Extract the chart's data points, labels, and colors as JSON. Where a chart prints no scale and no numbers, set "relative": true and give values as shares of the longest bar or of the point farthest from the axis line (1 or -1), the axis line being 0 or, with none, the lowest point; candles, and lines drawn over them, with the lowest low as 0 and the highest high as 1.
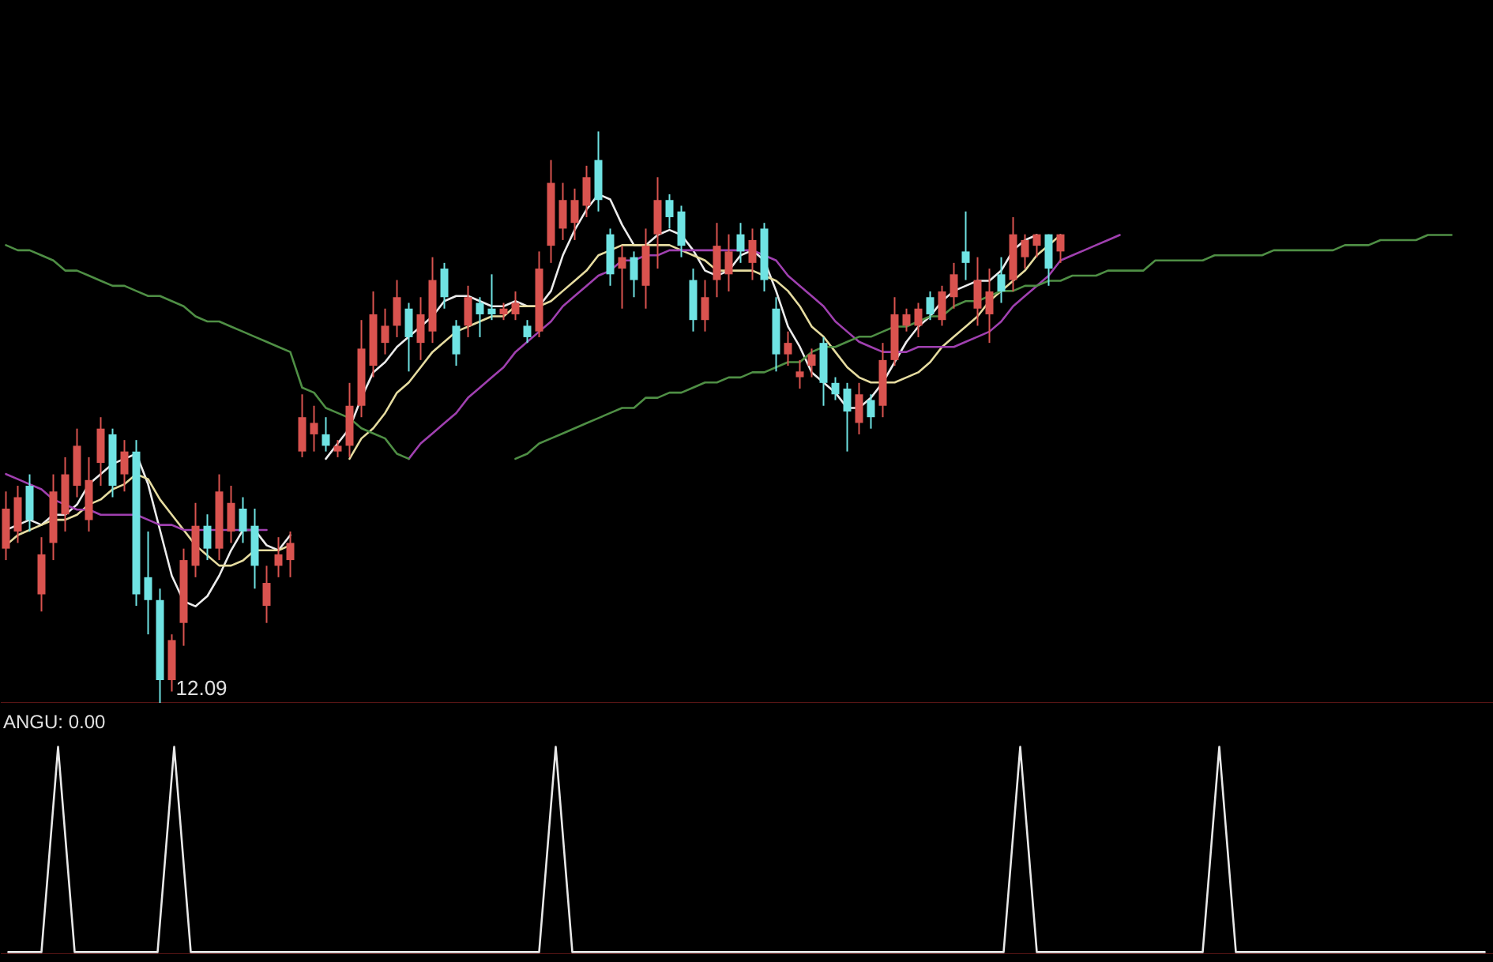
{
  "chart_data": [
    {
      "type": "candlestick",
      "relative": true,
      "categories": [
        null,
        null,
        null,
        null,
        null,
        null,
        null,
        null,
        null,
        null,
        null,
        null,
        null,
        null,
        null,
        null,
        null,
        null,
        null,
        null,
        null,
        null,
        null,
        null,
        null,
        null,
        null,
        null,
        null,
        null,
        null,
        null,
        null,
        null,
        null,
        null,
        null,
        null,
        null,
        null,
        null,
        null,
        null,
        null,
        null,
        null,
        null,
        null,
        null,
        null,
        null,
        null,
        null,
        null,
        null,
        null,
        null,
        null,
        null,
        null,
        null,
        null,
        null,
        null,
        null,
        null,
        null,
        null,
        null,
        null,
        null,
        null,
        null,
        null,
        null,
        null,
        null,
        null,
        null,
        null,
        null,
        null,
        null,
        null,
        null,
        null,
        null,
        null,
        null,
        null
      ],
      "ohlc": [
        [
          0.27,
          0.37,
          0.25,
          0.34
        ],
        [
          0.3,
          0.38,
          0.28,
          0.36
        ],
        [
          0.38,
          0.4,
          0.3,
          0.32
        ],
        [
          0.19,
          0.29,
          0.16,
          0.26
        ],
        [
          0.28,
          0.4,
          0.25,
          0.37
        ],
        [
          0.33,
          0.43,
          0.3,
          0.4
        ],
        [
          0.38,
          0.48,
          0.36,
          0.45
        ],
        [
          0.32,
          0.43,
          0.3,
          0.39
        ],
        [
          0.42,
          0.5,
          0.38,
          0.48
        ],
        [
          0.47,
          0.48,
          0.36,
          0.38
        ],
        [
          0.4,
          0.46,
          0.37,
          0.44
        ],
        [
          0.44,
          0.46,
          0.17,
          0.19
        ],
        [
          0.22,
          0.3,
          0.12,
          0.18
        ],
        [
          0.18,
          0.2,
          0,
          0.04
        ],
        [
          0.04,
          0.12,
          0.02,
          0.11
        ],
        [
          0.14,
          0.27,
          0.1,
          0.25
        ],
        [
          0.24,
          0.35,
          0.22,
          0.31
        ],
        [
          0.31,
          0.33,
          0.25,
          0.27
        ],
        [
          0.27,
          0.4,
          0.25,
          0.37
        ],
        [
          0.3,
          0.38,
          0.28,
          0.35
        ],
        [
          0.34,
          0.36,
          0.28,
          0.3
        ],
        [
          0.31,
          0.34,
          0.2,
          0.24
        ],
        [
          0.17,
          0.24,
          0.14,
          0.21
        ],
        [
          0.24,
          0.29,
          0.22,
          0.26
        ],
        [
          0.25,
          0.3,
          0.22,
          0.28
        ],
        [
          0.44,
          0.54,
          0.43,
          0.5
        ],
        [
          0.47,
          0.52,
          0.44,
          0.49
        ],
        [
          0.47,
          0.5,
          0.44,
          0.45
        ],
        [
          0.44,
          0.46,
          0.43,
          0.45
        ],
        [
          0.45,
          0.56,
          0.43,
          0.52
        ],
        [
          0.52,
          0.67,
          0.5,
          0.62
        ],
        [
          0.59,
          0.72,
          0.57,
          0.68
        ],
        [
          0.63,
          0.69,
          0.61,
          0.66
        ],
        [
          0.66,
          0.74,
          0.64,
          0.71
        ],
        [
          0.69,
          0.7,
          0.58,
          0.64
        ],
        [
          0.63,
          0.71,
          0.6,
          0.68
        ],
        [
          0.65,
          0.78,
          0.63,
          0.74
        ],
        [
          0.76,
          0.77,
          0.69,
          0.71
        ],
        [
          0.66,
          0.67,
          0.59,
          0.61
        ],
        [
          0.66,
          0.73,
          0.64,
          0.71
        ],
        [
          0.7,
          0.71,
          0.64,
          0.68
        ],
        [
          0.69,
          0.75,
          0.67,
          0.68
        ],
        [
          0.68,
          0.7,
          0.67,
          0.69
        ],
        [
          0.68,
          0.72,
          0.67,
          0.7
        ],
        [
          0.66,
          0.67,
          0.63,
          0.64
        ],
        [
          0.65,
          0.79,
          0.64,
          0.76
        ],
        [
          0.8,
          0.95,
          0.77,
          0.91
        ],
        [
          0.83,
          0.91,
          0.81,
          0.88
        ],
        [
          0.84,
          0.9,
          0.81,
          0.88
        ],
        [
          0.87,
          0.94,
          0.85,
          0.92
        ],
        [
          0.95,
          1,
          0.86,
          0.88
        ],
        [
          0.82,
          0.83,
          0.73,
          0.75
        ],
        [
          0.76,
          0.8,
          0.69,
          0.78
        ],
        [
          0.78,
          0.79,
          0.71,
          0.74
        ],
        [
          0.73,
          0.83,
          0.69,
          0.8
        ],
        [
          0.82,
          0.92,
          0.76,
          0.88
        ],
        [
          0.88,
          0.89,
          0.83,
          0.85
        ],
        [
          0.86,
          0.87,
          0.78,
          0.8
        ],
        [
          0.74,
          0.76,
          0.65,
          0.67
        ],
        [
          0.67,
          0.74,
          0.65,
          0.71
        ],
        [
          0.74,
          0.84,
          0.71,
          0.8
        ],
        [
          0.75,
          0.82,
          0.72,
          0.79
        ],
        [
          0.82,
          0.84,
          0.77,
          0.79
        ],
        [
          0.77,
          0.83,
          0.74,
          0.81
        ],
        [
          0.83,
          0.84,
          0.72,
          0.74
        ],
        [
          0.69,
          0.71,
          0.58,
          0.61
        ],
        [
          0.61,
          0.65,
          0.59,
          0.63
        ],
        [
          0.57,
          0.6,
          0.55,
          0.58
        ],
        [
          0.59,
          0.62,
          0.57,
          0.61
        ],
        [
          0.63,
          0.64,
          0.52,
          0.56
        ],
        [
          0.56,
          0.57,
          0.53,
          0.54
        ],
        [
          0.55,
          0.56,
          0.44,
          0.51
        ],
        [
          0.49,
          0.56,
          0.47,
          0.54
        ],
        [
          0.53,
          0.54,
          0.48,
          0.5
        ],
        [
          0.52,
          0.63,
          0.5,
          0.6
        ],
        [
          0.6,
          0.71,
          0.59,
          0.68
        ],
        [
          0.66,
          0.69,
          0.65,
          0.68
        ],
        [
          0.66,
          0.7,
          0.64,
          0.69
        ],
        [
          0.71,
          0.72,
          0.67,
          0.68
        ],
        [
          0.67,
          0.73,
          0.66,
          0.72
        ],
        [
          0.71,
          0.77,
          0.69,
          0.75
        ],
        [
          0.79,
          0.86,
          0.74,
          0.77
        ],
        [
          0.69,
          0.78,
          0.66,
          0.74
        ],
        [
          0.68,
          0.76,
          0.63,
          0.72
        ],
        [
          0.75,
          0.78,
          0.7,
          0.72
        ],
        [
          0.74,
          0.85,
          0.72,
          0.82
        ],
        [
          0.78,
          0.82,
          0.76,
          0.81
        ],
        [
          0.8,
          0.82,
          0.78,
          0.82
        ],
        [
          0.82,
          0.82,
          0.73,
          0.76
        ],
        [
          0.79,
          0.82,
          0.77,
          0.82
        ]
      ],
      "colors": [
        "#d9534f",
        "#d9534f",
        "#6fe3e3",
        "#d9534f",
        "#d9534f",
        "#d9534f",
        "#d9534f",
        "#d9534f",
        "#d9534f",
        "#6fe3e3",
        "#d9534f",
        "#6fe3e3",
        "#6fe3e3",
        "#6fe3e3",
        "#d9534f",
        "#d9534f",
        "#d9534f",
        "#6fe3e3",
        "#d9534f",
        "#d9534f",
        "#6fe3e3",
        "#6fe3e3",
        "#d9534f",
        "#d9534f",
        "#d9534f",
        "#d9534f",
        "#d9534f",
        "#6fe3e3",
        "#d9534f",
        "#d9534f",
        "#d9534f",
        "#d9534f",
        "#d9534f",
        "#d9534f",
        "#6fe3e3",
        "#d9534f",
        "#d9534f",
        "#6fe3e3",
        "#6fe3e3",
        "#d9534f",
        "#6fe3e3",
        "#6fe3e3",
        "#d9534f",
        "#d9534f",
        "#6fe3e3",
        "#d9534f",
        "#d9534f",
        "#d9534f",
        "#d9534f",
        "#d9534f",
        "#6fe3e3",
        "#6fe3e3",
        "#d9534f",
        "#6fe3e3",
        "#d9534f",
        "#d9534f",
        "#6fe3e3",
        "#6fe3e3",
        "#6fe3e3",
        "#d9534f",
        "#d9534f",
        "#d9534f",
        "#6fe3e3",
        "#d9534f",
        "#6fe3e3",
        "#6fe3e3",
        "#d9534f",
        "#d9534f",
        "#d9534f",
        "#6fe3e3",
        "#6fe3e3",
        "#6fe3e3",
        "#d9534f",
        "#6fe3e3",
        "#d9534f",
        "#d9534f",
        "#d9534f",
        "#d9534f",
        "#6fe3e3",
        "#d9534f",
        "#d9534f",
        "#6fe3e3",
        "#d9534f",
        "#d9534f",
        "#6fe3e3",
        "#d9534f",
        "#d9534f",
        "#d9534f",
        "#6fe3e3",
        "#d9534f"
      ],
      "annotations": [
        "12.09"
      ]
    },
    {
      "type": "line",
      "relative": true,
      "categories": [
        null,
        null,
        null,
        null,
        null,
        null,
        null,
        null,
        null,
        null,
        null,
        null,
        null,
        null,
        null,
        null,
        null,
        null,
        null,
        null,
        null,
        null,
        null,
        null,
        null,
        null,
        null,
        null,
        null,
        null,
        null,
        null,
        null,
        null,
        null,
        null,
        null,
        null,
        null,
        null,
        null,
        null,
        null,
        null,
        null,
        null,
        null,
        null,
        null,
        null,
        null,
        null,
        null,
        null,
        null,
        null,
        null,
        null,
        null,
        null,
        null,
        null,
        null,
        null,
        null,
        null,
        null,
        null,
        null,
        null,
        null,
        null,
        null,
        null,
        null,
        null,
        null,
        null,
        null,
        null,
        null,
        null,
        null,
        null,
        null,
        null,
        null,
        null,
        null,
        null,
        null,
        null,
        null,
        null,
        null,
        null,
        null,
        null,
        null,
        null,
        null,
        null,
        null,
        null,
        null,
        null,
        null,
        null,
        null,
        null,
        null,
        null,
        null,
        null,
        null,
        null,
        null,
        null,
        null,
        null,
        null,
        null,
        null,
        null,
        null,
        null
      ],
      "series": [
        {
          "type": "line",
          "color": "#ececec",
          "values": [
            0.34,
            0.35,
            0.36,
            0.35,
            0.37,
            0.37,
            0.39,
            0.43,
            0.45,
            0.47,
            0.48,
            0.49,
            0.43,
            0.34,
            0.25,
            0.2,
            0.19,
            0.21,
            0.25,
            0.3,
            0.34,
            0.34,
            0.31,
            0.3,
            0.33,
            null,
            null,
            null,
            null,
            null,
            null,
            null,
            null,
            null,
            null,
            null,
            null,
            null,
            null,
            null,
            null,
            null,
            null,
            null,
            null,
            null,
            null,
            null,
            null,
            null,
            null,
            null,
            null,
            null,
            null,
            null,
            null,
            null,
            null,
            null,
            null,
            null,
            null,
            null,
            null,
            null,
            null,
            null,
            null,
            null,
            null,
            null,
            null,
            null,
            null,
            null,
            null,
            null,
            null,
            null,
            null,
            null,
            null,
            null,
            null,
            null,
            null,
            null,
            null,
            null,
            null,
            null,
            null,
            null,
            null,
            null,
            null,
            null,
            null,
            null,
            null,
            null,
            null,
            null,
            null,
            null,
            null,
            null,
            null,
            null,
            null,
            null,
            null,
            null,
            null,
            null,
            null,
            null,
            null,
            null,
            null,
            null,
            null,
            null,
            null,
            null
          ]
        },
        {
          "type": "line",
          "color": "#ececec",
          "values": [
            null,
            null,
            null,
            null,
            null,
            null,
            null,
            null,
            null,
            null,
            null,
            null,
            null,
            null,
            null,
            null,
            null,
            null,
            null,
            null,
            null,
            null,
            null,
            null,
            null,
            null,
            null,
            0.48,
            0.51,
            0.54,
            0.6,
            0.65,
            0.67,
            0.7,
            0.72,
            0.74,
            0.76,
            0.79,
            0.8,
            0.8,
            0.79,
            0.78,
            0.78,
            0.79,
            0.78,
            0.78,
            0.81,
            0.88,
            0.93,
            0.97,
            1,
            0.99,
            0.94,
            0.9,
            0.9,
            0.92,
            0.93,
            0.92,
            0.89,
            0.85,
            0.84,
            0.85,
            0.88,
            0.89,
            0.87,
            0.81,
            0.74,
            0.7,
            0.65,
            0.63,
            0.61,
            0.58,
            0.58,
            0.6,
            0.63,
            0.67,
            0.71,
            0.74,
            0.76,
            0.79,
            0.81,
            0.82,
            0.83,
            0.83,
            0.85,
            0.89,
            0.91,
            0.92,
            null,
            null,
            null,
            null,
            null,
            null,
            null,
            null,
            null,
            null,
            null,
            null,
            null,
            null,
            null,
            null,
            null,
            null,
            null,
            null,
            null,
            null,
            null,
            null,
            null,
            null,
            null,
            null,
            null,
            null,
            null,
            null,
            null,
            null,
            null,
            null,
            null,
            null
          ]
        },
        {
          "type": "line",
          "color": "#e6dca0",
          "values": [
            0.31,
            0.33,
            0.34,
            0.35,
            0.36,
            0.36,
            0.37,
            0.39,
            0.4,
            0.42,
            0.43,
            0.45,
            0.44,
            0.4,
            0.37,
            0.34,
            0.31,
            0.29,
            0.27,
            0.27,
            0.28,
            0.3,
            0.3,
            0.3,
            0.31,
            null,
            null,
            null,
            null,
            null,
            null,
            null,
            null,
            null,
            null,
            null,
            null,
            null,
            null,
            null,
            null,
            null,
            null,
            null,
            null,
            null,
            null,
            null,
            null,
            null,
            null,
            null,
            null,
            null,
            null,
            null,
            null,
            null,
            null,
            null,
            null,
            null,
            null,
            null,
            null,
            null,
            null,
            null,
            null,
            null,
            null,
            null,
            null,
            null,
            null,
            null,
            null,
            null,
            null,
            null,
            null,
            null,
            null,
            null,
            null,
            null,
            null,
            null,
            null,
            null,
            null,
            null,
            null,
            null,
            null,
            null,
            null,
            null,
            null,
            null,
            null,
            null,
            null,
            null,
            null,
            null,
            null,
            null,
            null,
            null,
            null,
            null,
            null,
            null,
            null,
            null,
            null,
            null,
            null,
            null,
            null,
            null,
            null,
            null,
            null,
            null
          ]
        },
        {
          "type": "line",
          "color": "#e6dca0",
          "values": [
            null,
            null,
            null,
            null,
            null,
            null,
            null,
            null,
            null,
            null,
            null,
            null,
            null,
            null,
            null,
            null,
            null,
            null,
            null,
            null,
            null,
            null,
            null,
            null,
            null,
            null,
            null,
            null,
            null,
            0.48,
            0.52,
            0.54,
            0.57,
            0.61,
            0.63,
            0.66,
            0.69,
            0.71,
            0.73,
            0.74,
            0.75,
            0.76,
            0.76,
            0.78,
            0.78,
            0.78,
            0.79,
            0.81,
            0.83,
            0.85,
            0.88,
            0.89,
            0.9,
            0.9,
            0.9,
            0.9,
            0.9,
            0.89,
            0.88,
            0.87,
            0.85,
            0.85,
            0.85,
            0.85,
            0.84,
            0.83,
            0.81,
            0.78,
            0.74,
            0.72,
            0.69,
            0.66,
            0.64,
            0.63,
            0.63,
            0.63,
            0.64,
            0.65,
            0.67,
            0.7,
            0.72,
            0.74,
            0.76,
            0.79,
            0.81,
            0.83,
            0.85,
            0.88,
            0.9,
            0.92,
            null,
            null,
            null,
            null,
            null,
            null,
            null,
            null,
            null,
            null,
            null,
            null,
            null,
            null,
            null,
            null,
            null,
            null,
            null,
            null,
            null,
            null,
            null,
            null,
            null,
            null,
            null,
            null,
            null,
            null,
            null,
            null,
            null,
            null,
            null,
            null
          ]
        },
        {
          "type": "line",
          "color": "#a040b0",
          "values": [
            0.45,
            0.44,
            0.43,
            0.42,
            0.4,
            0.39,
            0.38,
            0.38,
            0.37,
            0.37,
            0.37,
            0.37,
            0.36,
            0.35,
            0.35,
            0.34,
            0.34,
            0.34,
            0.34,
            0.34,
            0.34,
            0.34,
            0.34,
            null,
            null,
            null,
            null,
            null,
            null,
            null,
            null,
            null,
            null,
            null,
            null,
            null,
            null,
            null,
            null,
            null,
            null,
            null,
            null,
            null,
            null,
            null,
            null,
            null,
            null,
            null,
            null,
            null,
            null,
            null,
            null,
            null,
            null,
            null,
            null,
            null,
            null,
            null,
            null,
            null,
            null,
            null,
            null,
            null,
            null,
            null,
            null,
            null,
            null,
            null,
            null,
            null,
            null,
            null,
            null,
            null,
            null,
            null,
            null,
            null,
            null,
            null,
            null,
            null,
            null,
            null,
            null,
            null,
            null,
            null,
            null,
            null,
            null,
            null,
            null,
            null,
            null,
            null,
            null,
            null,
            null,
            null,
            null,
            null,
            null,
            null,
            null,
            null,
            null,
            null,
            null,
            null,
            null,
            null,
            null,
            null,
            null,
            null,
            null,
            null,
            null,
            null
          ]
        },
        {
          "type": "line",
          "color": "#a040b0",
          "values": [
            null,
            null,
            null,
            null,
            null,
            null,
            null,
            null,
            null,
            null,
            null,
            null,
            null,
            null,
            null,
            null,
            null,
            null,
            null,
            null,
            null,
            null,
            null,
            null,
            null,
            null,
            null,
            null,
            null,
            null,
            null,
            null,
            null,
            null,
            0.48,
            0.51,
            0.53,
            0.55,
            0.57,
            0.6,
            0.62,
            0.64,
            0.66,
            0.69,
            0.71,
            0.73,
            0.75,
            0.78,
            0.8,
            0.82,
            0.84,
            0.85,
            0.87,
            0.87,
            0.88,
            0.88,
            0.89,
            0.89,
            0.89,
            0.89,
            0.89,
            0.89,
            0.89,
            0.89,
            0.88,
            0.87,
            0.84,
            0.82,
            0.8,
            0.78,
            0.75,
            0.73,
            0.71,
            0.7,
            0.69,
            0.69,
            0.69,
            0.7,
            0.7,
            0.7,
            0.7,
            0.71,
            0.72,
            0.73,
            0.75,
            0.78,
            0.8,
            0.82,
            0.84,
            0.87,
            0.88,
            0.89,
            0.9,
            0.91,
            0.92,
            null,
            null,
            null,
            null,
            null,
            null,
            null,
            null,
            null,
            null,
            null,
            null,
            null,
            null,
            null,
            null,
            null,
            null,
            null,
            null,
            null,
            null,
            null,
            null,
            null,
            null,
            null,
            null,
            null,
            null,
            null
          ]
        },
        {
          "type": "line",
          "color": "#4f8f45",
          "values": [
            0.9,
            0.89,
            0.89,
            0.88,
            0.87,
            0.85,
            0.85,
            0.84,
            0.83,
            0.82,
            0.82,
            0.81,
            0.8,
            0.8,
            0.79,
            0.78,
            0.76,
            0.75,
            0.75,
            0.74,
            0.73,
            0.72,
            0.71,
            0.7,
            0.69,
            0.62,
            0.61,
            0.58,
            0.57,
            0.56,
            0.54,
            0.53,
            0.52,
            0.49,
            0.48,
            null,
            null,
            null,
            null,
            null,
            null,
            null,
            null,
            null,
            null,
            null,
            null,
            null,
            null,
            null,
            null,
            null,
            null,
            null,
            null,
            null,
            null,
            null,
            null,
            null,
            null,
            null,
            null,
            null,
            null,
            null,
            null,
            null,
            null,
            null,
            null,
            null,
            null,
            null,
            null,
            null,
            null,
            null,
            null,
            null,
            null,
            null,
            null,
            null,
            null,
            null,
            null,
            null,
            null,
            null,
            null,
            null,
            null,
            null,
            null,
            null,
            null,
            null,
            null,
            null,
            null,
            null,
            null,
            null,
            null,
            null,
            null,
            null,
            null,
            null,
            null,
            null,
            null,
            null,
            null,
            null,
            null,
            null,
            null,
            null,
            null,
            null,
            null,
            null,
            null,
            null
          ]
        },
        {
          "type": "line",
          "color": "#4f8f45",
          "values": [
            null,
            null,
            null,
            null,
            null,
            null,
            null,
            null,
            null,
            null,
            null,
            null,
            null,
            null,
            null,
            null,
            null,
            null,
            null,
            null,
            null,
            null,
            null,
            null,
            null,
            null,
            null,
            null,
            null,
            null,
            null,
            null,
            null,
            null,
            null,
            null,
            null,
            null,
            null,
            null,
            null,
            null,
            null,
            0.48,
            0.49,
            0.51,
            0.52,
            0.53,
            0.54,
            0.55,
            0.56,
            0.57,
            0.58,
            0.58,
            0.6,
            0.6,
            0.61,
            0.61,
            0.62,
            0.63,
            0.63,
            0.64,
            0.64,
            0.65,
            0.65,
            0.66,
            0.67,
            0.67,
            0.69,
            0.7,
            0.7,
            0.71,
            0.72,
            0.72,
            0.73,
            0.74,
            0.74,
            0.75,
            0.76,
            0.76,
            0.78,
            0.79,
            0.79,
            0.8,
            0.81,
            0.81,
            0.82,
            0.82,
            0.83,
            0.83,
            0.84,
            0.84,
            0.84,
            0.85,
            0.85,
            0.85,
            0.85,
            0.87,
            0.87,
            0.87,
            0.87,
            0.87,
            0.88,
            0.88,
            0.88,
            0.88,
            0.88,
            0.89,
            0.89,
            0.89,
            0.89,
            0.89,
            0.89,
            0.9,
            0.9,
            0.9,
            0.91,
            0.91,
            0.91,
            0.91,
            0.92,
            0.92,
            0.92,
            null,
            null,
            null
          ]
        }
      ]
    },
    {
      "type": "line",
      "relative": true,
      "categories": [
        null,
        null,
        null,
        null,
        null,
        null,
        null,
        null,
        null,
        null,
        null,
        null,
        null,
        null,
        null,
        null,
        null,
        null,
        null,
        null,
        null,
        null,
        null,
        null,
        null,
        null,
        null,
        null,
        null,
        null,
        null,
        null,
        null,
        null,
        null,
        null,
        null,
        null,
        null,
        null,
        null,
        null,
        null,
        null,
        null,
        null,
        null,
        null,
        null,
        null,
        null,
        null,
        null,
        null,
        null,
        null,
        null,
        null,
        null,
        null,
        null,
        null,
        null,
        null,
        null,
        null,
        null,
        null,
        null,
        null,
        null,
        null,
        null,
        null,
        null,
        null,
        null,
        null,
        null,
        null,
        null,
        null,
        null,
        null,
        null,
        null,
        null,
        null,
        null,
        null
      ],
      "series": [
        {
          "type": "line",
          "color": "#e8e8e8",
          "values": [
            0,
            0,
            0,
            1,
            0,
            0,
            0,
            0,
            0,
            0,
            1,
            0,
            0,
            0,
            0,
            0,
            0,
            0,
            0,
            0,
            0,
            0,
            0,
            0,
            0,
            0,
            0,
            0,
            0,
            0,
            0,
            0,
            0,
            1,
            0,
            0,
            0,
            0,
            0,
            0,
            0,
            0,
            0,
            0,
            0,
            0,
            0,
            0,
            0,
            0,
            0,
            0,
            0,
            0,
            0,
            0,
            0,
            0,
            0,
            0,
            0,
            1,
            0,
            0,
            0,
            0,
            0,
            0,
            0,
            0,
            0,
            0,
            0,
            1,
            0,
            0,
            0,
            0,
            0,
            0,
            0,
            0,
            0,
            0,
            0,
            0,
            0,
            0,
            0,
            0
          ]
        }
      ],
      "annotations": [
        "ANGU: 0.00"
      ]
    }
  ]
}
